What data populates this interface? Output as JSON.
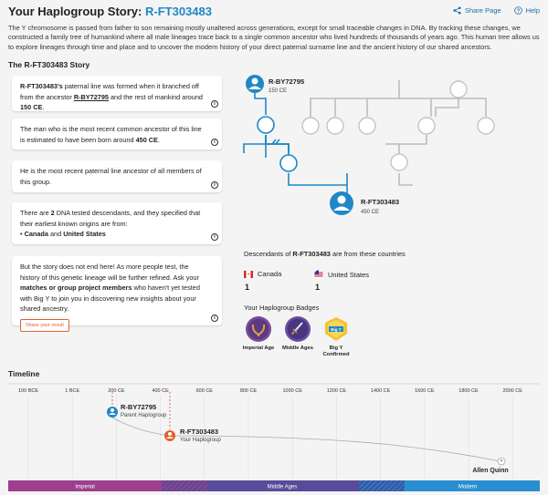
{
  "header": {
    "title_prefix": "Your Haplogroup Story: ",
    "haplogroup": "R-FT303483",
    "share_label": "Share Page",
    "help_label": "Help"
  },
  "intro": "The Y chromosome is passed from father to son remaining mostly unaltered across generations, except for small traceable changes in DNA. By tracking these changes, we constructed a family tree of humankind where all male lineages trace back to a single common ancestor who lived hundreds of thousands of years ago. This human tree allows us to explore lineages through time and place and to uncover the modern history of your direct paternal surname line and the ancient history of our shared ancestors.",
  "story": {
    "heading": "The R-FT303483 Story",
    "card1": {
      "hg": "R-FT303483's",
      "t1": " paternal line was formed when it branched off from the ancestor ",
      "parent": "R-BY72795",
      "t2": " and the rest of mankind around ",
      "date": "150 CE",
      "t3": "."
    },
    "card2": {
      "t1": "The man who is the most recent common ancestor of this line is estimated to have been born around ",
      "date": "450 CE",
      "t2": "."
    },
    "card3": {
      "text": "He is the most recent paternal line ancestor of all members of this group."
    },
    "card4": {
      "t1": "There are ",
      "count": "2",
      "t2": " DNA tested descendants, and they specified that their earliest known origins are from:",
      "c1": "Canada",
      "and": " and ",
      "c2": "United States"
    },
    "card5": {
      "t1": "But the story does not end here! As more people test, the history of this genetic lineage will be further refined. Ask your ",
      "b1": "matches or group project members",
      "t2": " who haven't yet tested with Big Y to join you in discovering new insights about your shared ancestry.",
      "share_btn": "Share your result"
    }
  },
  "tree": {
    "parent_name": "R-BY72795",
    "parent_date": "150 CE",
    "child_name": "R-FT303483",
    "child_date": "450 CE"
  },
  "descendants": {
    "heading_pre": "Descendants of ",
    "heading_hg": "R-FT303483",
    "heading_post": " are from these countries",
    "countries": [
      {
        "name": "Canada",
        "count": "1"
      },
      {
        "name": "United States",
        "count": "1"
      }
    ]
  },
  "badges": {
    "heading": "Your Haplogroup Badges",
    "items": [
      {
        "label": "Imperial Age",
        "color": "#6b3e8e"
      },
      {
        "label": "Middle Ages",
        "color": "#5a3f8a"
      },
      {
        "label": "Big Y Confirmed",
        "color": "#f2c230",
        "text": "Big Y"
      }
    ]
  },
  "timeline": {
    "heading": "Timeline",
    "ticks": [
      "100 BCE",
      "1 BCE",
      "200 CE",
      "400 CE",
      "600 CE",
      "800 CE",
      "1000 CE",
      "1200 CE",
      "1400 CE",
      "1600 CE",
      "1800 CE",
      "2000 CE"
    ],
    "parent_name": "R-BY72795",
    "parent_sub": "Parent Haplogroup",
    "self_name": "R-FT303483",
    "self_sub": "Your Haplogroup",
    "person": "Allen Quinn",
    "eras": [
      "Imperial",
      "Middle Ages",
      "Modern"
    ],
    "colors": {
      "imperial": "#9b3f8e",
      "middle": "#5a4a9a",
      "modern": "#2a8fd0",
      "node": "#1f87c5",
      "self_node": "#e0622d"
    }
  }
}
